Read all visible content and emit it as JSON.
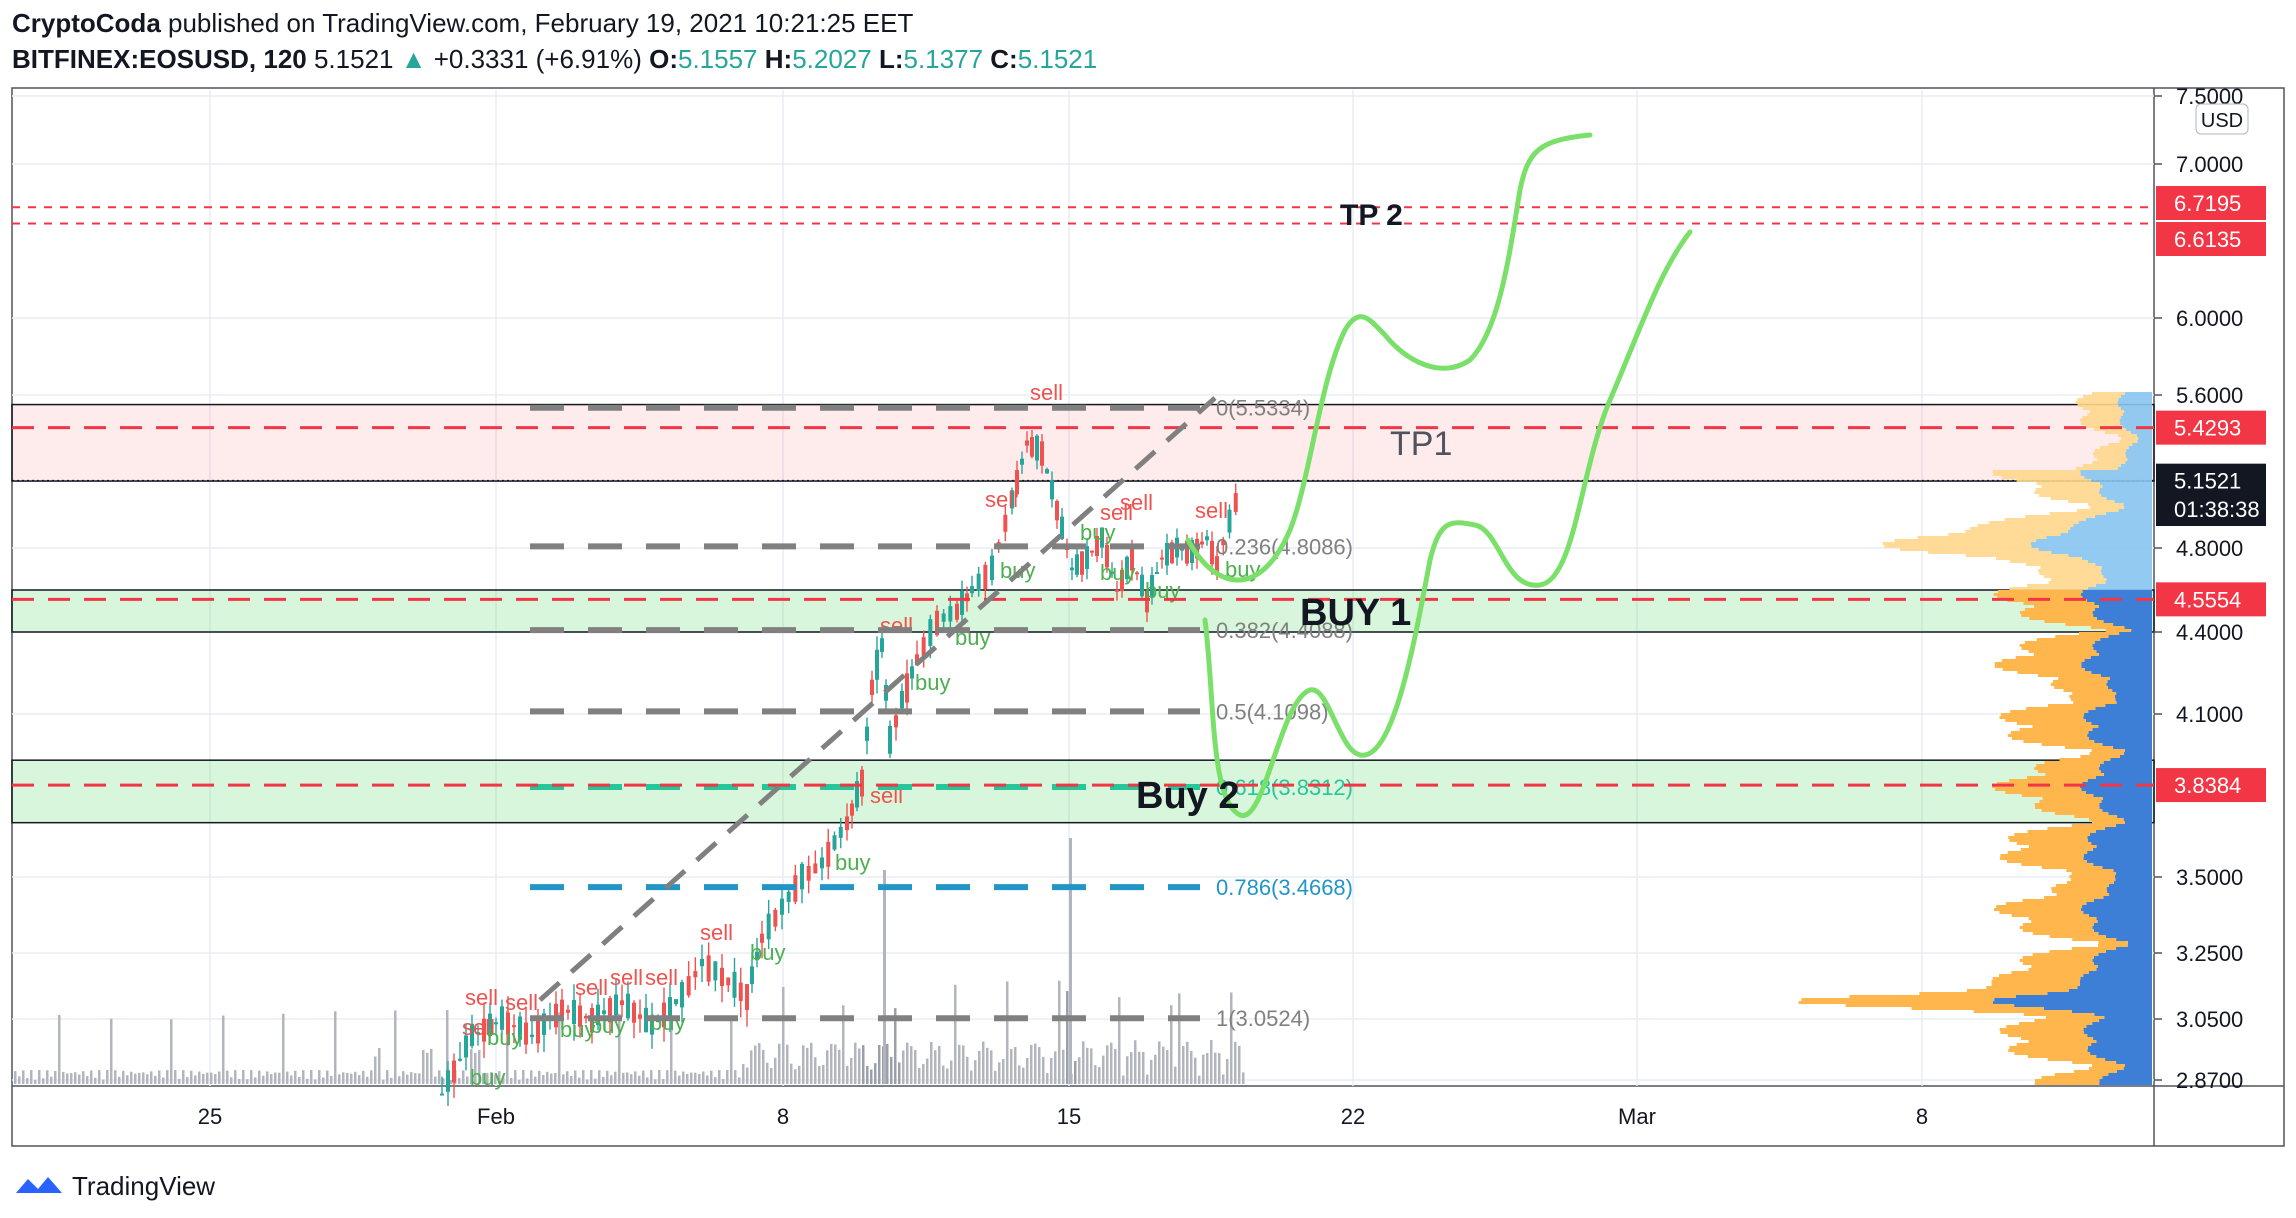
{
  "header": {
    "author": "CryptoCoda",
    "published_text": "published on TradingView.com, February 19, 2021 10:21:25 EET",
    "symbol": "BITFINEX:EOSUSD, 120",
    "last": "5.1521",
    "change": "+0.3331 (+6.91%)",
    "o_label": "O:",
    "o": "5.1557",
    "h_label": "H:",
    "h": "5.2027",
    "l_label": "L:",
    "l": "5.1377",
    "c_label": "C:",
    "c": "5.1521"
  },
  "footer": {
    "brand": "TradingView"
  },
  "colors": {
    "up": "#26a69a",
    "down": "#ef5350",
    "fib": "#808080",
    "fib618": "#26c69a",
    "fib786": "#2196c6",
    "drawn": "#7be06a",
    "price_red": "#f23645",
    "vol_blue": "#2962ff",
    "vol_orange": "#ffb74d"
  },
  "chart_data": {
    "type": "candlestick",
    "currency": "USD",
    "x_ticks": [
      "25",
      "Feb",
      "8",
      "15",
      "22",
      "Mar",
      "8"
    ],
    "y_ticks": [
      "7.5000",
      "7.0000",
      "6.0000",
      "5.6000",
      "4.8000",
      "4.4000",
      "4.1000",
      "3.5000",
      "3.2500",
      "3.0500",
      "2.8700"
    ],
    "price_labels": [
      {
        "text": "6.7195",
        "value": 6.7195,
        "style": "red"
      },
      {
        "text": "6.6135",
        "value": 6.6135,
        "style": "red"
      },
      {
        "text": "5.4293",
        "value": 5.4293,
        "style": "red"
      },
      {
        "text": "5.1521",
        "value": 5.1521,
        "style": "dark"
      },
      {
        "text": "01:38:38",
        "value": 4.9,
        "style": "dark"
      },
      {
        "text": "4.5554",
        "value": 4.5554,
        "style": "red"
      },
      {
        "text": "3.8384",
        "value": 3.8384,
        "style": "red"
      }
    ],
    "hlines": [
      6.7195,
      6.6135,
      5.4293,
      4.5554,
      3.8384
    ],
    "zones": [
      {
        "name": "resistance",
        "from": 5.15,
        "to": 5.55
      },
      {
        "name": "buy1",
        "from": 4.4,
        "to": 4.6
      },
      {
        "name": "buy2",
        "from": 3.7,
        "to": 3.93
      }
    ],
    "fib_levels": [
      {
        "ratio": "0",
        "value": 5.5334,
        "text": "0(5.5334)"
      },
      {
        "ratio": "0.236",
        "value": 4.8086,
        "text": "0.236(4.8086)"
      },
      {
        "ratio": "0.382",
        "value": 4.4088,
        "text": "0.382(4.4088)"
      },
      {
        "ratio": "0.5",
        "value": 4.1098,
        "text": "0.5(4.1098)"
      },
      {
        "ratio": "0.618",
        "value": 3.8312,
        "text": "0.618(3.8312)"
      },
      {
        "ratio": "0.786",
        "value": 3.4668,
        "text": "0.786(3.4668)"
      },
      {
        "ratio": "1",
        "value": 3.0524,
        "text": "1(3.0524)"
      }
    ],
    "annotations": [
      {
        "text": "TP 2"
      },
      {
        "text": "TP1"
      },
      {
        "text": "BUY 1"
      },
      {
        "text": "Buy 2"
      }
    ],
    "signals": {
      "sell": "sell",
      "buy": "buy"
    },
    "candles_sample": [
      {
        "date": "Jan 31",
        "o": 2.85,
        "h": 2.95,
        "l": 2.8,
        "c": 2.92
      },
      {
        "date": "Feb 1",
        "o": 3.0,
        "h": 3.18,
        "l": 2.9,
        "c": 3.05
      },
      {
        "date": "Feb 4",
        "o": 3.02,
        "h": 3.15,
        "l": 2.98,
        "c": 3.1
      },
      {
        "date": "Feb 7",
        "o": 3.2,
        "h": 3.3,
        "l": 3.05,
        "c": 3.1
      },
      {
        "date": "Feb 8",
        "o": 3.25,
        "h": 3.45,
        "l": 3.2,
        "c": 3.4
      },
      {
        "date": "Feb 9",
        "o": 3.55,
        "h": 3.8,
        "l": 3.5,
        "c": 3.75
      },
      {
        "date": "Feb 10",
        "o": 4.1,
        "h": 4.45,
        "l": 3.8,
        "c": 4.3
      },
      {
        "date": "Feb 12",
        "o": 4.5,
        "h": 4.75,
        "l": 4.4,
        "c": 4.7
      },
      {
        "date": "Feb 14",
        "o": 5.2,
        "h": 5.6,
        "l": 5.05,
        "c": 5.35
      },
      {
        "date": "Feb 15",
        "o": 4.9,
        "h": 5.05,
        "l": 4.15,
        "c": 4.6
      },
      {
        "date": "Feb 17",
        "o": 4.7,
        "h": 4.9,
        "l": 4.4,
        "c": 4.8
      },
      {
        "date": "Feb 19",
        "o": 4.82,
        "h": 5.2,
        "l": 4.75,
        "c": 5.15
      }
    ]
  }
}
